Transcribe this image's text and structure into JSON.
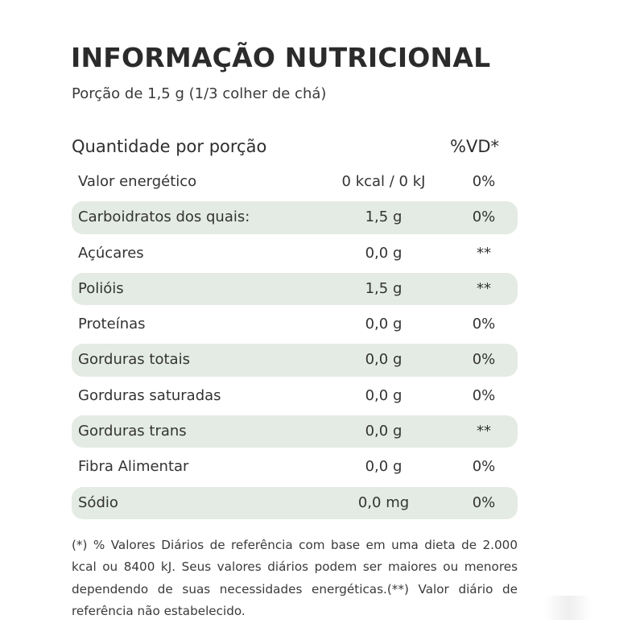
{
  "title": "INFORMAÇÃO NUTRICIONAL",
  "portion": "Porção de 1,5 g (1/3 colher de chá)",
  "header": {
    "quantity_label": "Quantidade por porção",
    "dv_label": "%VD*"
  },
  "rows": [
    {
      "name": "Valor energético",
      "amount": "0 kcal / 0 kJ",
      "dv": "0%"
    },
    {
      "name": "Carboidratos dos quais:",
      "amount": "1,5 g",
      "dv": "0%"
    },
    {
      "name": "Açúcares",
      "amount": "0,0 g",
      "dv": "**"
    },
    {
      "name": "Polióis",
      "amount": "1,5 g",
      "dv": "**"
    },
    {
      "name": "Proteínas",
      "amount": "0,0 g",
      "dv": "0%"
    },
    {
      "name": "Gorduras totais",
      "amount": "0,0 g",
      "dv": "0%"
    },
    {
      "name": "Gorduras saturadas",
      "amount": "0,0 g",
      "dv": "0%"
    },
    {
      "name": "Gorduras trans",
      "amount": "0,0 g",
      "dv": "**"
    },
    {
      "name": "Fibra Alimentar",
      "amount": "0,0 g",
      "dv": "0%"
    },
    {
      "name": "Sódio",
      "amount": "0,0 mg",
      "dv": "0%"
    }
  ],
  "footnote": "(*) % Valores Diários de referência com base em uma dieta de 2.000 kcal ou 8400 kJ. Seus valores diários podem ser maiores ou menores dependendo de suas necessidades energéticas.(**) Valor diário de referência não estabelecido.",
  "colors": {
    "row_shade": "#e4ebe4",
    "text": "#2e2e2e"
  }
}
